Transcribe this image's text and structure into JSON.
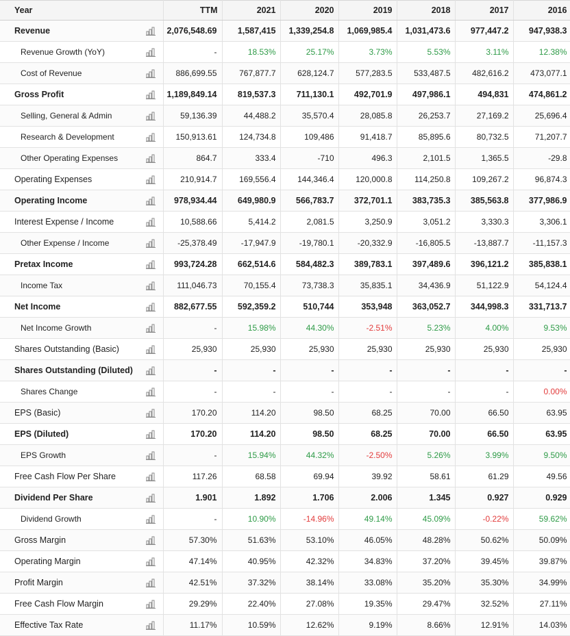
{
  "columns": [
    "Year",
    "TTM",
    "2021",
    "2020",
    "2019",
    "2018",
    "2017",
    "2016"
  ],
  "icon": "bar-chart-icon",
  "colors": {
    "positive": "#2e9b47",
    "negative": "#e23b3b"
  },
  "rows": [
    {
      "label": "Revenue",
      "style": "bold",
      "values": [
        "2,076,548.69",
        "1,587,415",
        "1,339,254.8",
        "1,069,985.4",
        "1,031,473.6",
        "977,447.2",
        "947,938.3"
      ]
    },
    {
      "label": "Revenue Growth (YoY)",
      "style": "sub",
      "values": [
        "-",
        "18.53%",
        "25.17%",
        "3.73%",
        "5.53%",
        "3.11%",
        "12.38%"
      ]
    },
    {
      "label": "Cost of Revenue",
      "style": "sub",
      "values": [
        "886,699.55",
        "767,877.7",
        "628,124.7",
        "577,283.5",
        "533,487.5",
        "482,616.2",
        "473,077.1"
      ]
    },
    {
      "label": "Gross Profit",
      "style": "bold",
      "values": [
        "1,189,849.14",
        "819,537.3",
        "711,130.1",
        "492,701.9",
        "497,986.1",
        "494,831",
        "474,861.2"
      ]
    },
    {
      "label": "Selling, General & Admin",
      "style": "sub",
      "values": [
        "59,136.39",
        "44,488.2",
        "35,570.4",
        "28,085.8",
        "26,253.7",
        "27,169.2",
        "25,696.4"
      ]
    },
    {
      "label": "Research & Development",
      "style": "sub",
      "values": [
        "150,913.61",
        "124,734.8",
        "109,486",
        "91,418.7",
        "85,895.6",
        "80,732.5",
        "71,207.7"
      ]
    },
    {
      "label": "Other Operating Expenses",
      "style": "sub",
      "values": [
        "864.7",
        "333.4",
        "-710",
        "496.3",
        "2,101.5",
        "1,365.5",
        "-29.8"
      ]
    },
    {
      "label": "Operating Expenses",
      "style": "normal",
      "values": [
        "210,914.7",
        "169,556.4",
        "144,346.4",
        "120,000.8",
        "114,250.8",
        "109,267.2",
        "96,874.3"
      ]
    },
    {
      "label": "Operating Income",
      "style": "bold",
      "values": [
        "978,934.44",
        "649,980.9",
        "566,783.7",
        "372,701.1",
        "383,735.3",
        "385,563.8",
        "377,986.9"
      ]
    },
    {
      "label": "Interest Expense / Income",
      "style": "normal",
      "values": [
        "10,588.66",
        "5,414.2",
        "2,081.5",
        "3,250.9",
        "3,051.2",
        "3,330.3",
        "3,306.1"
      ]
    },
    {
      "label": "Other Expense / Income",
      "style": "sub",
      "values": [
        "-25,378.49",
        "-17,947.9",
        "-19,780.1",
        "-20,332.9",
        "-16,805.5",
        "-13,887.7",
        "-11,157.3"
      ]
    },
    {
      "label": "Pretax Income",
      "style": "bold",
      "values": [
        "993,724.28",
        "662,514.6",
        "584,482.3",
        "389,783.1",
        "397,489.6",
        "396,121.2",
        "385,838.1"
      ]
    },
    {
      "label": "Income Tax",
      "style": "sub",
      "values": [
        "111,046.73",
        "70,155.4",
        "73,738.3",
        "35,835.1",
        "34,436.9",
        "51,122.9",
        "54,124.4"
      ]
    },
    {
      "label": "Net Income",
      "style": "bold",
      "values": [
        "882,677.55",
        "592,359.2",
        "510,744",
        "353,948",
        "363,052.7",
        "344,998.3",
        "331,713.7"
      ]
    },
    {
      "label": "Net Income Growth",
      "style": "sub",
      "values": [
        "-",
        "15.98%",
        "44.30%",
        "-2.51%",
        "5.23%",
        "4.00%",
        "9.53%"
      ]
    },
    {
      "label": "Shares Outstanding (Basic)",
      "style": "normal",
      "values": [
        "25,930",
        "25,930",
        "25,930",
        "25,930",
        "25,930",
        "25,930",
        "25,930"
      ]
    },
    {
      "label": "Shares Outstanding (Diluted)",
      "style": "bold",
      "values": [
        "-",
        "-",
        "-",
        "-",
        "-",
        "-",
        "-"
      ]
    },
    {
      "label": "Shares Change",
      "style": "sub",
      "values": [
        "-",
        "-",
        "-",
        "-",
        "-",
        "-",
        "0.00%"
      ]
    },
    {
      "label": "EPS (Basic)",
      "style": "normal",
      "values": [
        "170.20",
        "114.20",
        "98.50",
        "68.25",
        "70.00",
        "66.50",
        "63.95"
      ]
    },
    {
      "label": "EPS (Diluted)",
      "style": "bold",
      "values": [
        "170.20",
        "114.20",
        "98.50",
        "68.25",
        "70.00",
        "66.50",
        "63.95"
      ]
    },
    {
      "label": "EPS Growth",
      "style": "sub",
      "values": [
        "-",
        "15.94%",
        "44.32%",
        "-2.50%",
        "5.26%",
        "3.99%",
        "9.50%"
      ]
    },
    {
      "label": "Free Cash Flow Per Share",
      "style": "normal",
      "values": [
        "117.26",
        "68.58",
        "69.94",
        "39.92",
        "58.61",
        "61.29",
        "49.56"
      ]
    },
    {
      "label": "Dividend Per Share",
      "style": "bold",
      "values": [
        "1.901",
        "1.892",
        "1.706",
        "2.006",
        "1.345",
        "0.927",
        "0.929"
      ]
    },
    {
      "label": "Dividend Growth",
      "style": "sub",
      "values": [
        "-",
        "10.90%",
        "-14.96%",
        "49.14%",
        "45.09%",
        "-0.22%",
        "59.62%"
      ]
    },
    {
      "label": "Gross Margin",
      "style": "normal",
      "values": [
        "57.30%",
        "51.63%",
        "53.10%",
        "46.05%",
        "48.28%",
        "50.62%",
        "50.09%"
      ]
    },
    {
      "label": "Operating Margin",
      "style": "normal",
      "values": [
        "47.14%",
        "40.95%",
        "42.32%",
        "34.83%",
        "37.20%",
        "39.45%",
        "39.87%"
      ]
    },
    {
      "label": "Profit Margin",
      "style": "normal",
      "values": [
        "42.51%",
        "37.32%",
        "38.14%",
        "33.08%",
        "35.20%",
        "35.30%",
        "34.99%"
      ]
    },
    {
      "label": "Free Cash Flow Margin",
      "style": "normal",
      "values": [
        "29.29%",
        "22.40%",
        "27.08%",
        "19.35%",
        "29.47%",
        "32.52%",
        "27.11%"
      ]
    },
    {
      "label": "Effective Tax Rate",
      "style": "normal",
      "values": [
        "11.17%",
        "10.59%",
        "12.62%",
        "9.19%",
        "8.66%",
        "12.91%",
        "14.03%"
      ]
    }
  ]
}
